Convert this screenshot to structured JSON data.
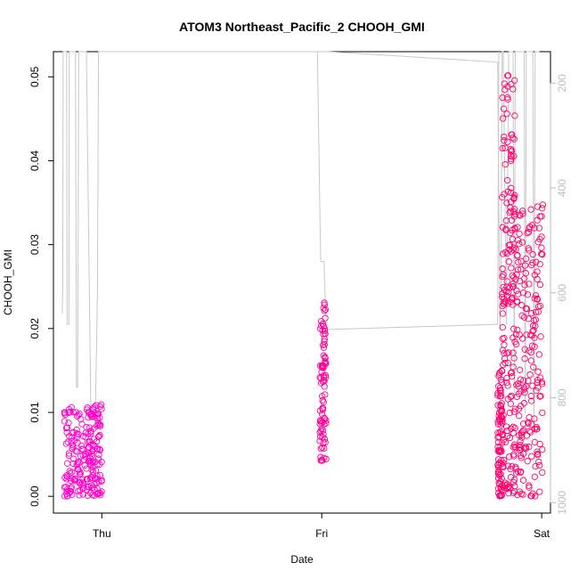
{
  "chart_data": {
    "type": "scatter",
    "title": "ATOM3 Northeast_Pacific_2 CHOOH_GMI",
    "xlabel": "Date",
    "ylabel": "CHOOH_GMI",
    "x_ticks": [
      {
        "day": 0,
        "label": "Thu"
      },
      {
        "day": 1,
        "label": "Fri"
      },
      {
        "day": 2,
        "label": "Sat"
      }
    ],
    "xlim": [
      -0.22,
      2.04
    ],
    "ylim": [
      -0.002,
      0.053
    ],
    "y_ticks": [
      0.0,
      0.01,
      0.02,
      0.03,
      0.04,
      0.05
    ],
    "y_tick_labels": [
      "0.00",
      "0.01",
      "0.02",
      "0.03",
      "0.04",
      "0.05"
    ],
    "y2_label_ticks": [
      200,
      400,
      600,
      800,
      1000
    ],
    "y2_lim": [
      1020,
      140
    ],
    "grid": false,
    "series": [
      {
        "role": "points",
        "color_start": "#ff00cc",
        "color_end": "#ff0066",
        "segments": [
          {
            "x0": -0.17,
            "x1": 0.0,
            "ymin": 0.0,
            "ymax": 0.011,
            "n": 220
          },
          {
            "x0": 0.99,
            "x1": 1.02,
            "ymin": 0.004,
            "ymax": 0.0235,
            "n": 90
          },
          {
            "x0": 1.8,
            "x1": 1.82,
            "ymin": 0.0,
            "ymax": 0.015,
            "n": 80
          },
          {
            "x0": 1.82,
            "x1": 1.88,
            "ymin": 0.0,
            "ymax": 0.051,
            "n": 180
          },
          {
            "x0": 1.88,
            "x1": 2.005,
            "ymin": 0.0,
            "ymax": 0.035,
            "n": 200
          }
        ]
      },
      {
        "role": "pressure",
        "axis": "right",
        "color": "#c8c8c8",
        "points": [
          [
            -0.18,
            640
          ],
          [
            -0.178,
            590
          ],
          [
            -0.176,
            120
          ],
          [
            -0.16,
            120
          ],
          [
            -0.158,
            660
          ],
          [
            -0.15,
            660
          ],
          [
            -0.148,
            120
          ],
          [
            -0.12,
            120
          ],
          [
            -0.115,
            780
          ],
          [
            -0.11,
            780
          ],
          [
            -0.105,
            120
          ],
          [
            -0.07,
            120
          ],
          [
            -0.05,
            830
          ],
          [
            -0.03,
            845
          ],
          [
            -0.02,
            600
          ],
          [
            -0.015,
            120
          ],
          [
            0.985,
            120
          ],
          [
            1.03,
            120
          ],
          [
            1.8,
            160
          ],
          [
            1.81,
            670
          ],
          [
            1.815,
            600
          ],
          [
            1.82,
            120
          ],
          [
            1.825,
            120
          ],
          [
            1.84,
            660
          ],
          [
            1.85,
            120
          ],
          [
            1.87,
            120
          ],
          [
            1.875,
            800
          ],
          [
            1.88,
            120
          ],
          [
            1.92,
            120
          ],
          [
            1.925,
            830
          ],
          [
            1.93,
            120
          ],
          [
            1.96,
            120
          ],
          [
            1.965,
            860
          ],
          [
            1.97,
            120
          ],
          [
            1.99,
            120
          ]
        ],
        "dip_points": [
          [
            0.98,
            120
          ],
          [
            0.995,
            540
          ],
          [
            1.01,
            540
          ],
          [
            1.02,
            670
          ],
          [
            1.79,
            660
          ],
          [
            1.8,
            660
          ],
          [
            1.805,
            120
          ]
        ]
      }
    ]
  }
}
